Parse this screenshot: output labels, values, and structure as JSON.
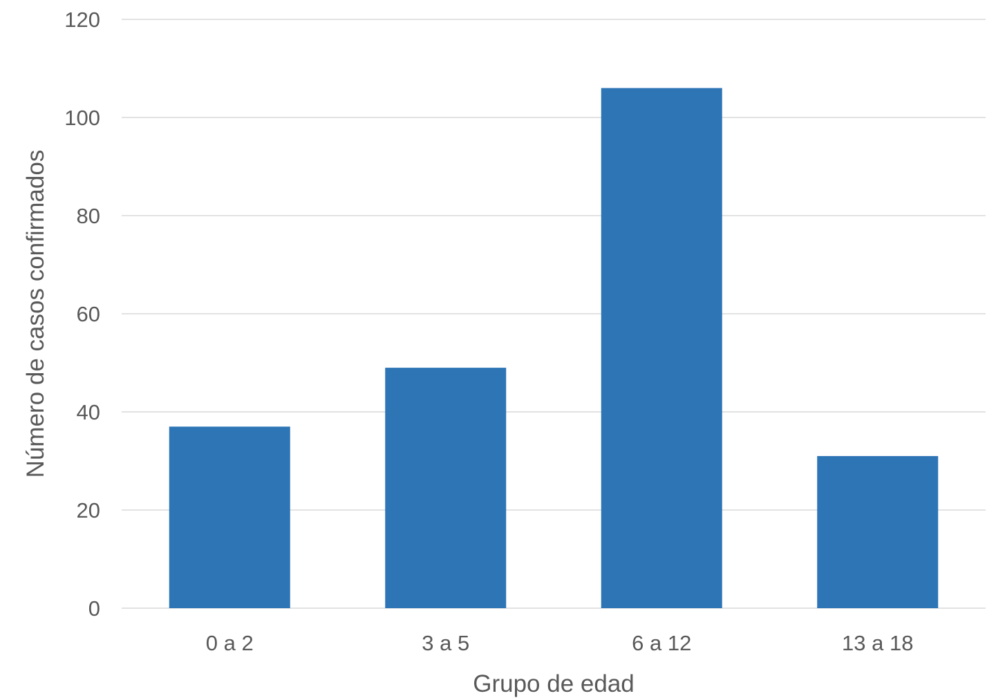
{
  "chart_data": {
    "type": "bar",
    "categories": [
      "0 a 2",
      "3 a 5",
      "6 a 12",
      "13 a 18"
    ],
    "values": [
      37,
      49,
      106,
      31
    ],
    "title": "",
    "xlabel": "Grupo de edad",
    "ylabel": "Número de casos confirmados",
    "ylim": [
      0,
      120
    ],
    "yticks": [
      "0",
      "20",
      "40",
      "60",
      "80",
      "100",
      "120"
    ],
    "grid": true,
    "legend": "none",
    "colors": {
      "bar": "#2e75b6",
      "grid": "#d9d9d9",
      "text": "#595959"
    }
  }
}
